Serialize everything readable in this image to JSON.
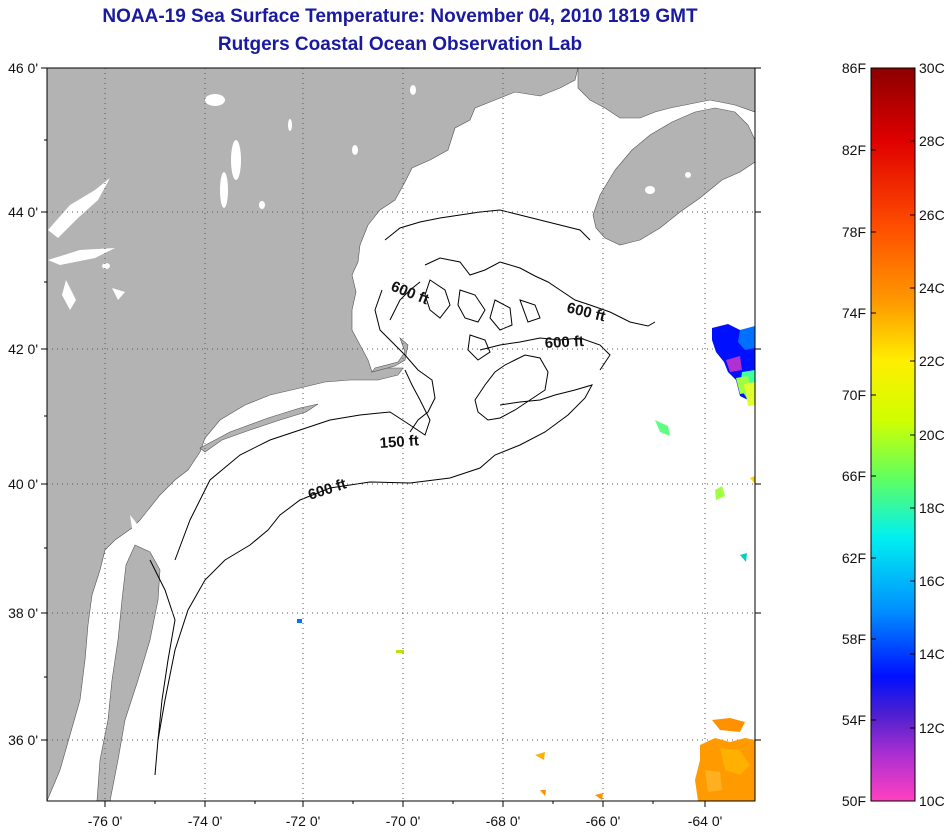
{
  "header": {
    "title": "NOAA-19 Sea Surface Temperature:  November 04, 2010 1819 GMT",
    "subtitle": "Rutgers Coastal Ocean Observation Lab"
  },
  "map": {
    "lat_labels": [
      "46 0'",
      "44 0'",
      "42 0'",
      "40 0'",
      "38 0'",
      "36 0'"
    ],
    "lon_labels": [
      "-76 0'",
      "-74 0'",
      "-72 0'",
      "-70 0'",
      "-68 0'",
      "-66 0'",
      "-64 0'"
    ],
    "contour_labels": [
      "600 ft",
      "600 ft",
      "600 ft",
      "150 ft",
      "600 ft"
    ],
    "colors": {
      "land": "#b3b3b3",
      "ocean": "#ffffff",
      "contour": "#000000"
    }
  },
  "colorbar": {
    "fahrenheit_labels": [
      "86F",
      "82F",
      "78F",
      "74F",
      "70F",
      "66F",
      "62F",
      "58F",
      "54F",
      "50F"
    ],
    "celsius_labels": [
      "30C",
      "28C",
      "26C",
      "24C",
      "22C",
      "20C",
      "18C",
      "16C",
      "14C",
      "12C",
      "10C"
    ],
    "gradient_colors": [
      "#8b0000",
      "#ff0000",
      "#ff8000",
      "#ffd000",
      "#ffff00",
      "#80ff00",
      "#00ffff",
      "#0080ff",
      "#0000ff",
      "#8000c0",
      "#ff40c0"
    ]
  }
}
